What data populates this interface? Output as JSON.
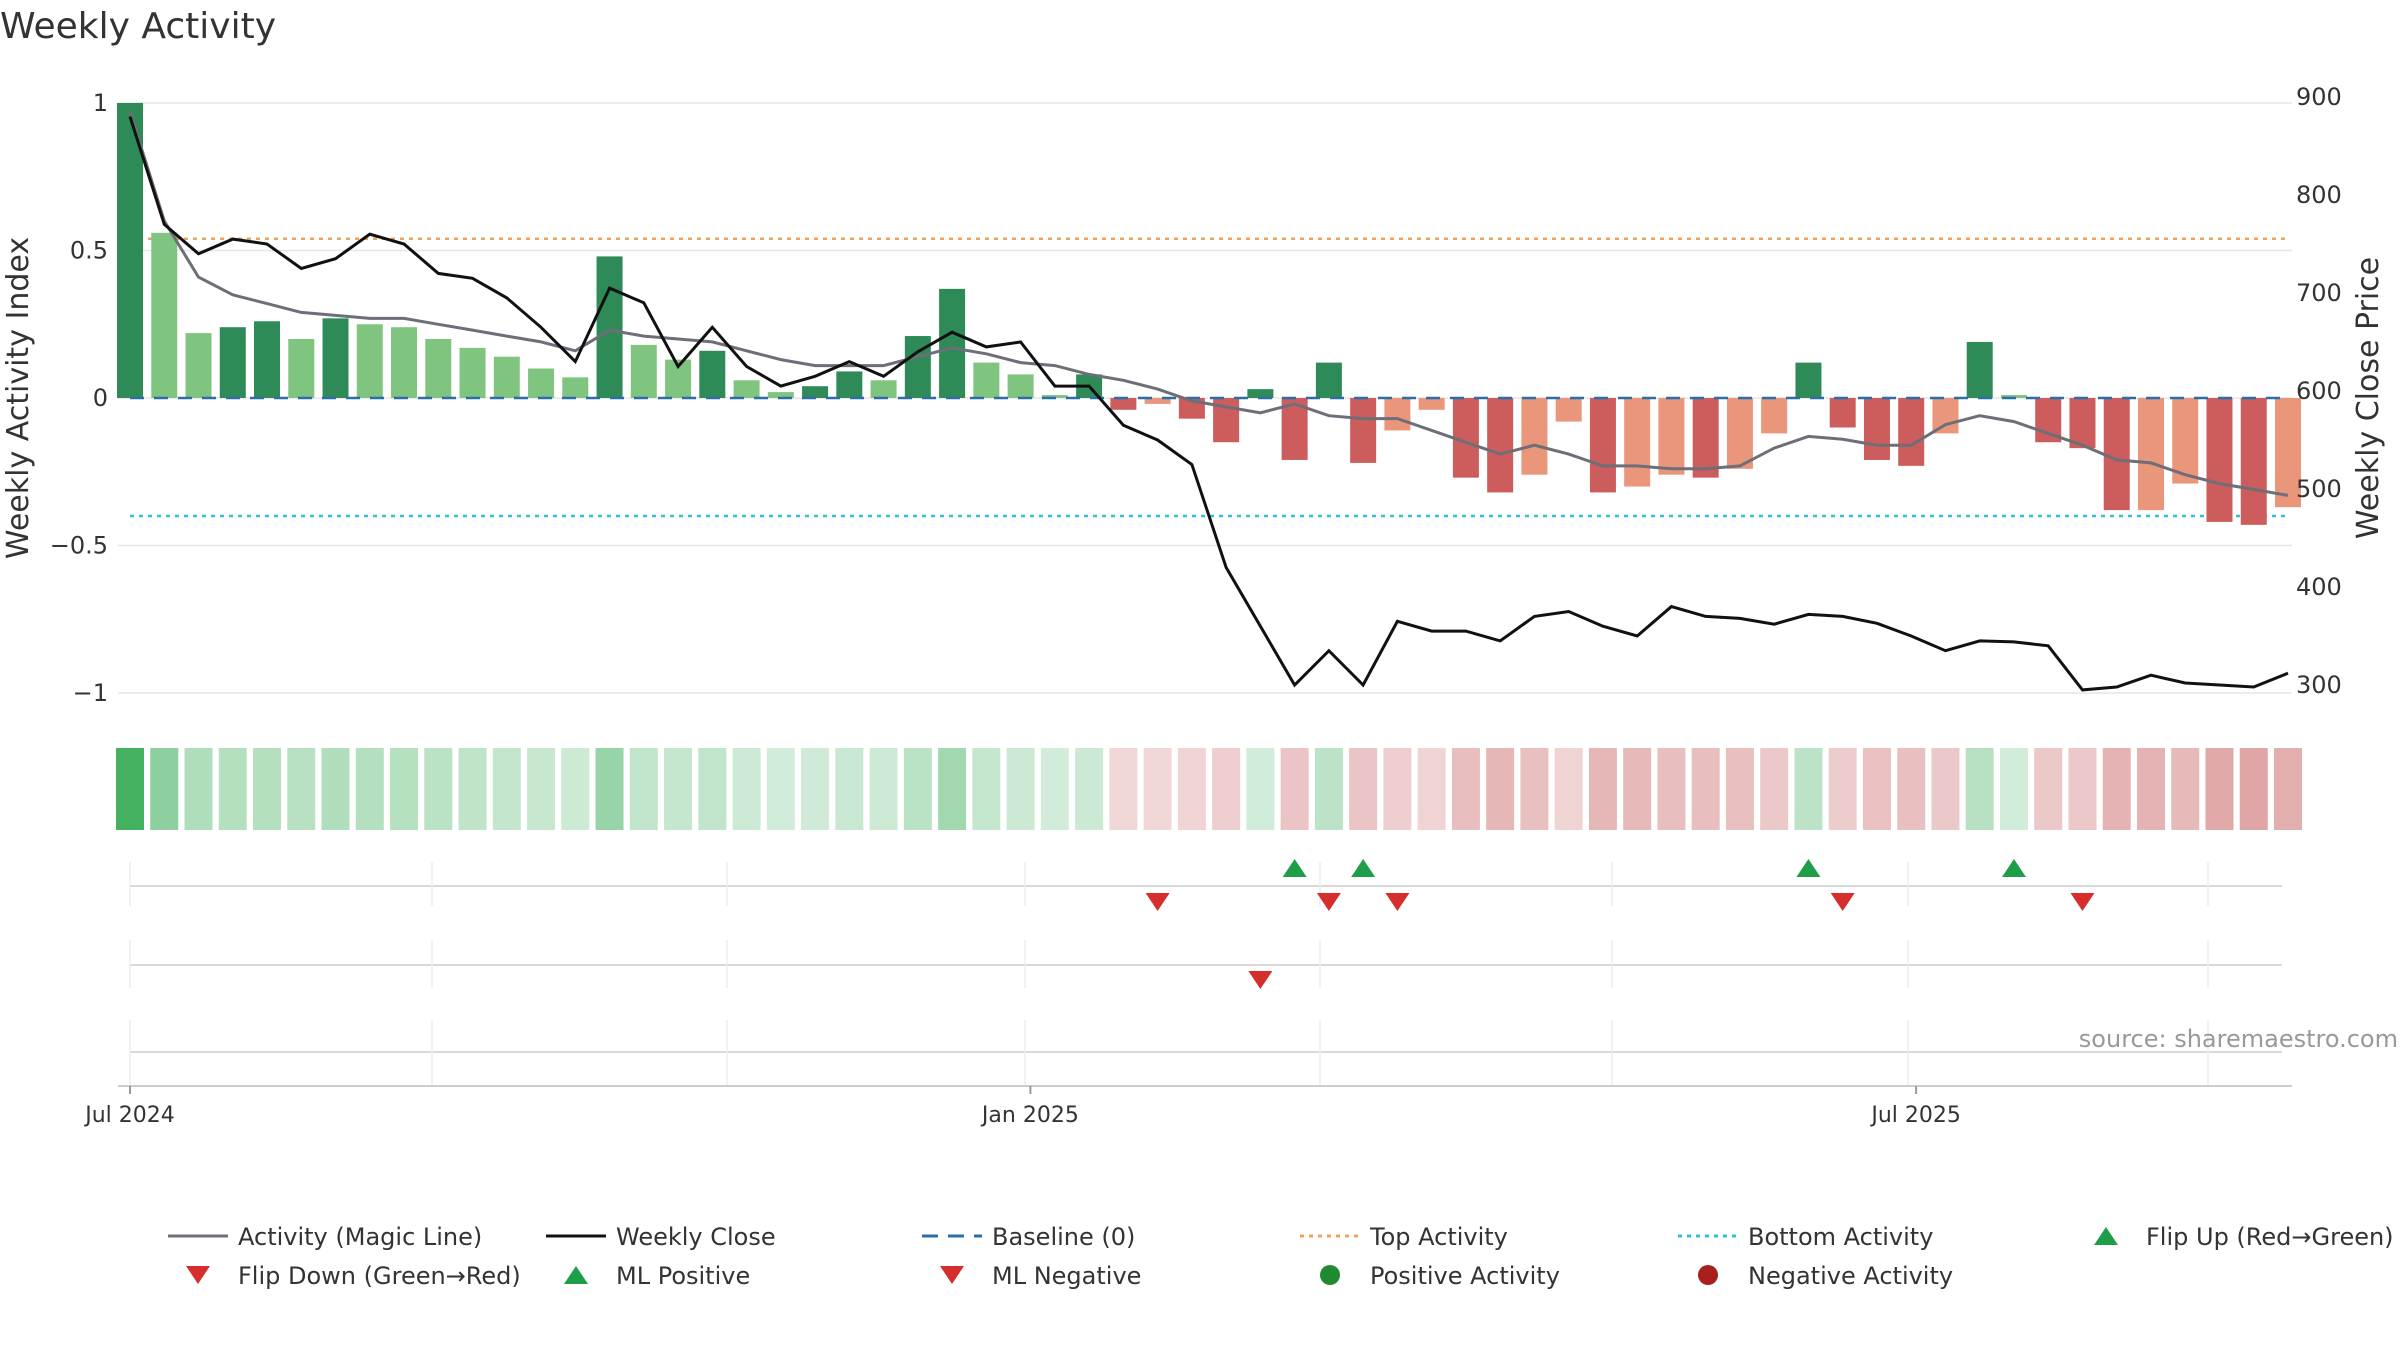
{
  "chart_data": {
    "type": "bar",
    "title": "Weekly Activity",
    "ylabel_left": "Weekly Activity Index",
    "ylabel_right": "Weekly Close Price",
    "ylim_left": [
      -1.1,
      1.02
    ],
    "ylim_right": [
      260,
      910
    ],
    "yticks_left": [
      1,
      0.5,
      0,
      -0.5,
      -1
    ],
    "ytick_labels_left": [
      "1",
      "0.5",
      "0",
      "−0.5",
      "−1"
    ],
    "yticks_right": [
      900,
      800,
      700,
      600,
      500,
      400,
      300
    ],
    "x_start": "2024-07-01",
    "x_end": "2025-09-29",
    "x_ticks": [
      {
        "date": "2024-07-01",
        "label": "Jul 2024"
      },
      {
        "date": "2025-01-01",
        "label": "Jan 2025"
      },
      {
        "date": "2025-07-01",
        "label": "Jul 2025"
      }
    ],
    "weeks": [
      "2024-07-01",
      "2024-07-08",
      "2024-07-15",
      "2024-07-22",
      "2024-07-29",
      "2024-08-05",
      "2024-08-12",
      "2024-08-19",
      "2024-08-26",
      "2024-09-02",
      "2024-09-09",
      "2024-09-16",
      "2024-09-23",
      "2024-09-30",
      "2024-10-07",
      "2024-10-14",
      "2024-10-21",
      "2024-10-28",
      "2024-11-04",
      "2024-11-11",
      "2024-11-18",
      "2024-11-25",
      "2024-12-02",
      "2024-12-09",
      "2024-12-16",
      "2024-12-23",
      "2024-12-30",
      "2025-01-06",
      "2025-01-13",
      "2025-01-20",
      "2025-01-27",
      "2025-02-03",
      "2025-02-10",
      "2025-02-17",
      "2025-02-24",
      "2025-03-03",
      "2025-03-10",
      "2025-03-17",
      "2025-03-24",
      "2025-03-31",
      "2025-04-07",
      "2025-04-14",
      "2025-04-21",
      "2025-04-28",
      "2025-05-05",
      "2025-05-12",
      "2025-05-19",
      "2025-05-26",
      "2025-06-02",
      "2025-06-09",
      "2025-06-16",
      "2025-06-23",
      "2025-06-30",
      "2025-07-07",
      "2025-07-14",
      "2025-07-21",
      "2025-07-28",
      "2025-08-04",
      "2025-08-11",
      "2025-08-18",
      "2025-08-25",
      "2025-09-01",
      "2025-09-08",
      "2025-09-15"
    ],
    "activity": [
      1.0,
      0.56,
      0.22,
      0.24,
      0.26,
      0.2,
      0.27,
      0.25,
      0.24,
      0.2,
      0.17,
      0.14,
      0.1,
      0.07,
      0.48,
      0.18,
      0.13,
      0.16,
      0.06,
      0.02,
      0.04,
      0.09,
      0.06,
      0.21,
      0.37,
      0.12,
      0.08,
      0.01,
      0.08,
      -0.04,
      -0.02,
      -0.07,
      -0.15,
      0.03,
      -0.21,
      0.12,
      -0.22,
      -0.11,
      -0.04,
      -0.27,
      -0.32,
      -0.26,
      -0.08,
      -0.32,
      -0.3,
      -0.26,
      -0.27,
      -0.24,
      -0.12,
      0.12,
      -0.1,
      -0.21,
      -0.23,
      -0.12,
      0.19,
      0.01,
      -0.15,
      -0.17,
      -0.38,
      -0.38,
      -0.29,
      -0.42,
      -0.43,
      -0.37
    ],
    "bar_shade": [
      "dark",
      "light",
      "light",
      "dark",
      "dark",
      "light",
      "dark",
      "light",
      "light",
      "light",
      "light",
      "light",
      "light",
      "light",
      "dark",
      "light",
      "light",
      "dark",
      "light",
      "light",
      "dark",
      "dark",
      "light",
      "dark",
      "dark",
      "light",
      "light",
      "light",
      "dark",
      "dark",
      "light",
      "dark",
      "dark",
      "dark",
      "dark",
      "dark",
      "dark",
      "light",
      "light",
      "dark",
      "dark",
      "light",
      "light",
      "dark",
      "light",
      "light",
      "dark",
      "light",
      "light",
      "dark",
      "dark",
      "dark",
      "dark",
      "light",
      "dark",
      "light",
      "dark",
      "dark",
      "dark",
      "light",
      "light",
      "dark",
      "dark",
      "light"
    ],
    "magic_line": [
      0.97,
      0.6,
      0.41,
      0.35,
      0.32,
      0.29,
      0.28,
      0.27,
      0.27,
      0.25,
      0.23,
      0.21,
      0.19,
      0.16,
      0.23,
      0.21,
      0.2,
      0.19,
      0.16,
      0.13,
      0.11,
      0.11,
      0.11,
      0.14,
      0.17,
      0.15,
      0.12,
      0.11,
      0.08,
      0.06,
      0.03,
      -0.01,
      -0.03,
      -0.05,
      -0.02,
      -0.06,
      -0.07,
      -0.07,
      -0.11,
      -0.15,
      -0.19,
      -0.16,
      -0.19,
      -0.23,
      -0.23,
      -0.24,
      -0.24,
      -0.23,
      -0.17,
      -0.13,
      -0.14,
      -0.16,
      -0.16,
      -0.09,
      -0.06,
      -0.08,
      -0.12,
      -0.16,
      -0.21,
      -0.22,
      -0.26,
      -0.29,
      -0.31,
      -0.33
    ],
    "weekly_close": [
      880,
      770,
      740,
      755,
      750,
      725,
      735,
      760,
      750,
      720,
      715,
      695,
      665,
      630,
      705,
      690,
      625,
      665,
      625,
      605,
      615,
      630,
      615,
      640,
      660,
      645,
      650,
      605,
      605,
      565,
      550,
      525,
      420,
      360,
      300,
      335,
      300,
      365,
      355,
      355,
      345,
      370,
      375,
      360,
      350,
      380,
      370,
      368,
      362,
      372,
      370,
      363,
      350,
      335,
      345,
      344,
      340,
      295,
      298,
      310,
      302,
      300,
      298,
      312
    ],
    "heat_strength": [
      0.9,
      0.55,
      0.38,
      0.36,
      0.36,
      0.34,
      0.38,
      0.36,
      0.35,
      0.33,
      0.31,
      0.29,
      0.27,
      0.24,
      0.5,
      0.3,
      0.28,
      0.3,
      0.24,
      0.22,
      0.23,
      0.26,
      0.24,
      0.33,
      0.45,
      0.28,
      0.25,
      0.22,
      0.25,
      0.22,
      0.22,
      0.24,
      0.27,
      0.22,
      0.32,
      0.32,
      0.32,
      0.27,
      0.24,
      0.36,
      0.4,
      0.35,
      0.24,
      0.4,
      0.38,
      0.36,
      0.36,
      0.35,
      0.3,
      0.32,
      0.28,
      0.34,
      0.35,
      0.3,
      0.34,
      0.22,
      0.3,
      0.31,
      0.42,
      0.42,
      0.38,
      0.48,
      0.49,
      0.45
    ],
    "flip_up_weeks": [
      "2025-02-24",
      "2025-03-10",
      "2025-06-09",
      "2025-07-21"
    ],
    "flip_down_weeks": [
      "2025-01-27",
      "2025-03-03",
      "2025-03-17",
      "2025-06-16",
      "2025-08-04"
    ],
    "ml_negative_weeks": [
      "2025-02-17"
    ],
    "ml_positive_weeks": [],
    "positive_activity_weeks": [],
    "negative_activity_weeks": [],
    "top_activity": 0.54,
    "bottom_activity": -0.4,
    "baseline": 0,
    "legend": [
      {
        "label": "Activity (Magic Line)",
        "style": "line",
        "color": "#6e6e78"
      },
      {
        "label": "Weekly Close",
        "style": "line",
        "color": "#111111"
      },
      {
        "label": "Baseline (0)",
        "style": "dash",
        "color": "#2a6fa8"
      },
      {
        "label": "Top Activity",
        "style": "dot",
        "color": "#f0a35e"
      },
      {
        "label": "Bottom Activity",
        "style": "dot",
        "color": "#2bc4d6"
      },
      {
        "label": "Flip Up (Red→Green)",
        "style": "tri-up",
        "color": "#1f9e4a"
      },
      {
        "label": "Flip Down (Green→Red)",
        "style": "tri-down",
        "color": "#d62d2d"
      },
      {
        "label": "ML Positive",
        "style": "tri-up",
        "color": "#1f9e4a"
      },
      {
        "label": "ML Negative",
        "style": "tri-down",
        "color": "#d62d2d"
      },
      {
        "label": "Positive Activity",
        "style": "circle",
        "color": "#1f8a2f"
      },
      {
        "label": "Negative Activity",
        "style": "circle",
        "color": "#a8201d"
      }
    ],
    "legend_position": "bottom",
    "grid": true,
    "source": "source: sharemaestro.com",
    "colors": {
      "green_dark": "#2e8b57",
      "green_light": "#80c57f",
      "red_dark": "#cd5c5c",
      "red_light": "#e9967a",
      "grid": "#e6e6e6"
    }
  }
}
